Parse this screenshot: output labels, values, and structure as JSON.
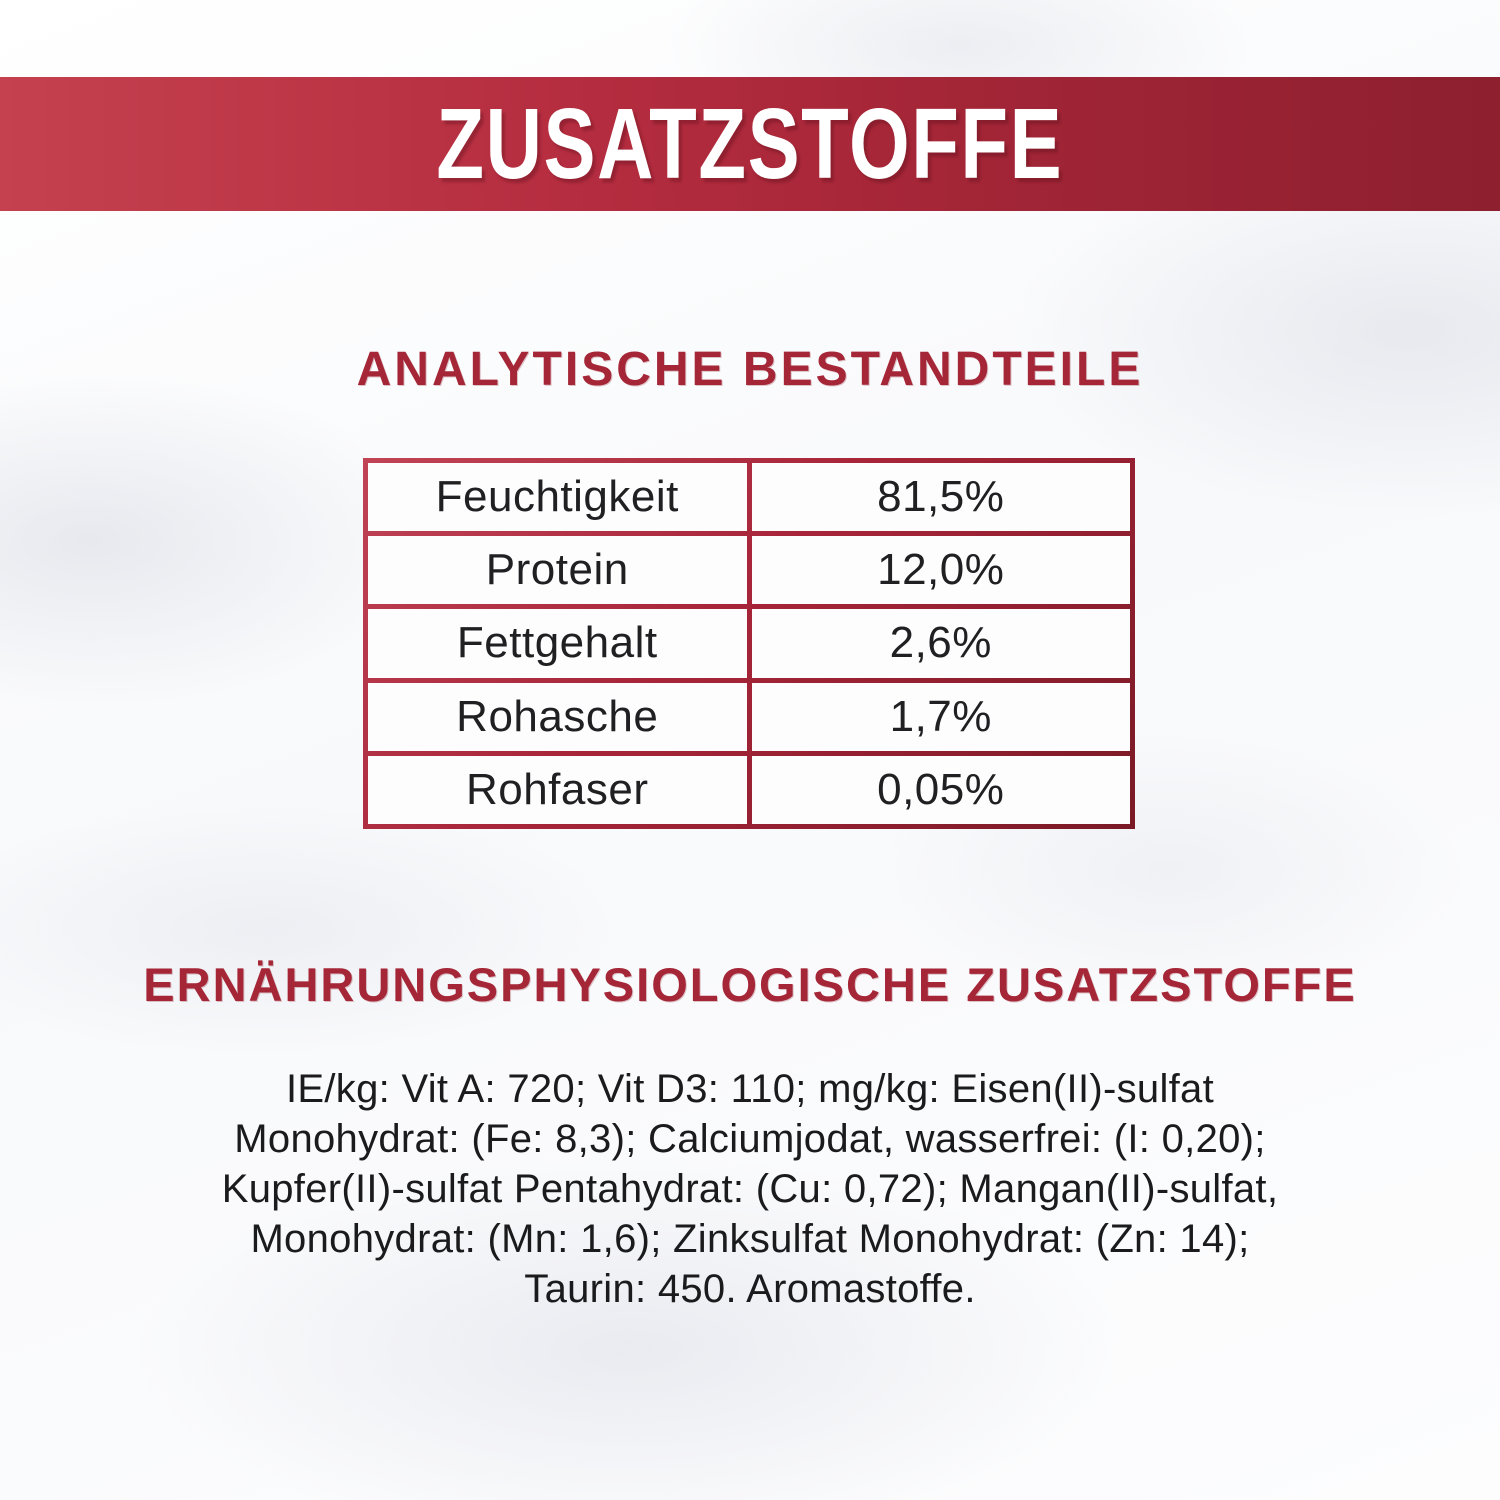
{
  "banner": {
    "title": "ZUSATZSTOFFE"
  },
  "analytical": {
    "heading": "ANALYTISCHE BESTANDTEILE",
    "rows": [
      {
        "label": "Feuchtigkeit",
        "value": "81,5%"
      },
      {
        "label": "Protein",
        "value": "12,0%"
      },
      {
        "label": "Fettgehalt",
        "value": "2,6%"
      },
      {
        "label": "Rohasche",
        "value": "1,7%"
      },
      {
        "label": "Rohfaser",
        "value": "0,05%"
      }
    ]
  },
  "additives": {
    "heading": "ERNÄHRUNGSPHYSIOLOGISCHE ZUSATZSTOFFE",
    "lines": [
      "IE/kg: Vit A: 720; Vit D3: 110; mg/kg: Eisen(II)-sulfat",
      "Monohydrat: (Fe: 8,3); Calciumjodat, wasserfrei: (I: 0,20);",
      "Kupfer(II)-sulfat Pentahydrat: (Cu: 0,72); Mangan(II)-sulfat,",
      "Monohydrat: (Mn: 1,6); Zinksulfat Monohydrat: (Zn: 14);",
      "Taurin: 450. Aromastoffe."
    ]
  },
  "colors": {
    "banner_red_left": "#c5414f",
    "banner_red_right": "#8d1f2f",
    "heading_red": "#a52637",
    "table_border_red": "#a82539",
    "text_dark": "#1b1b1d"
  }
}
